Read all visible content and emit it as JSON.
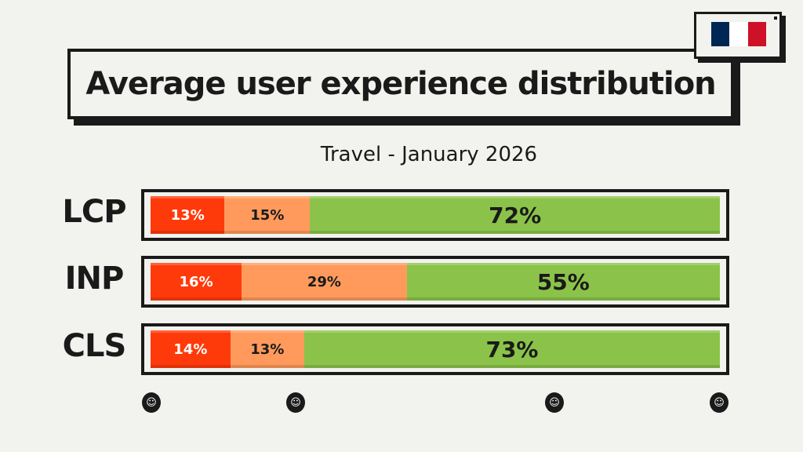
{
  "chart_data": {
    "type": "bar",
    "stacked": true,
    "orientation": "horizontal",
    "title": "Average user experience distribution",
    "subtitle": "Travel - January 2026",
    "categories": [
      "LCP",
      "INP",
      "CLS"
    ],
    "series": [
      {
        "values": [
          13,
          16,
          14
        ],
        "color": "#ff3a0a"
      },
      {
        "values": [
          15,
          29,
          13
        ],
        "color": "#ff9a5c"
      },
      {
        "values": [
          72,
          55,
          73
        ],
        "color": "#8bc34a"
      }
    ],
    "labels": [
      [
        "13%",
        "15%",
        "72%"
      ],
      [
        "16%",
        "29%",
        "55%"
      ],
      [
        "14%",
        "13%",
        "73%"
      ]
    ],
    "xlim": [
      0,
      100
    ]
  },
  "flag": {
    "name": "france-flag",
    "colors": [
      "#002654",
      "#ffffff",
      "#ce1126"
    ]
  },
  "icons": [
    "face-icon-1",
    "face-icon-2",
    "face-icon-3",
    "face-icon-4"
  ]
}
